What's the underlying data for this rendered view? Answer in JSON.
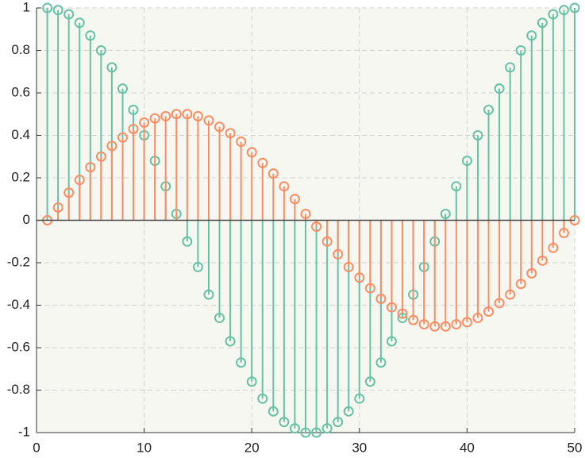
{
  "chart_data": {
    "type": "stem",
    "x": [
      1,
      2,
      3,
      4,
      5,
      6,
      7,
      8,
      9,
      10,
      11,
      12,
      13,
      14,
      15,
      16,
      17,
      18,
      19,
      20,
      21,
      22,
      23,
      24,
      25,
      26,
      27,
      28,
      29,
      30,
      31,
      32,
      33,
      34,
      35,
      36,
      37,
      38,
      39,
      40,
      41,
      42,
      43,
      44,
      45,
      46,
      47,
      48,
      49,
      50
    ],
    "series": [
      {
        "color": "#66c2a5",
        "values": [
          1,
          0.99,
          0.97,
          0.93,
          0.87,
          0.8,
          0.72,
          0.62,
          0.52,
          0.4,
          0.28,
          0.16,
          0.03,
          -0.1,
          -0.22,
          -0.35,
          -0.46,
          -0.57,
          -0.67,
          -0.76,
          -0.84,
          -0.9,
          -0.95,
          -0.98,
          -1,
          -1,
          -0.98,
          -0.95,
          -0.9,
          -0.84,
          -0.76,
          -0.67,
          -0.57,
          -0.46,
          -0.35,
          -0.22,
          -0.1,
          0.03,
          0.16,
          0.28,
          0.4,
          0.52,
          0.62,
          0.72,
          0.8,
          0.87,
          0.93,
          0.97,
          0.99,
          1
        ]
      },
      {
        "color": "#fc8d62",
        "values": [
          0,
          0.06,
          0.13,
          0.19,
          0.25,
          0.3,
          0.35,
          0.39,
          0.43,
          0.46,
          0.48,
          0.49,
          0.5,
          0.5,
          0.49,
          0.47,
          0.44,
          0.41,
          0.37,
          0.32,
          0.27,
          0.22,
          0.16,
          0.1,
          0.03,
          -0.03,
          -0.1,
          -0.16,
          -0.22,
          -0.27,
          -0.32,
          -0.37,
          -0.41,
          -0.44,
          -0.47,
          -0.49,
          -0.5,
          -0.5,
          -0.49,
          -0.48,
          -0.46,
          -0.43,
          -0.39,
          -0.35,
          -0.3,
          -0.25,
          -0.19,
          -0.13,
          -0.06,
          0
        ]
      }
    ],
    "xlim": [
      0,
      50
    ],
    "xticks": [
      0,
      10,
      20,
      30,
      40,
      50
    ],
    "ylim": [
      -1,
      1
    ],
    "yticks": [
      -1,
      -0.8,
      -0.6,
      -0.4,
      -0.2,
      0,
      0.2,
      0.4,
      0.6,
      0.8,
      1
    ],
    "grid": true
  }
}
